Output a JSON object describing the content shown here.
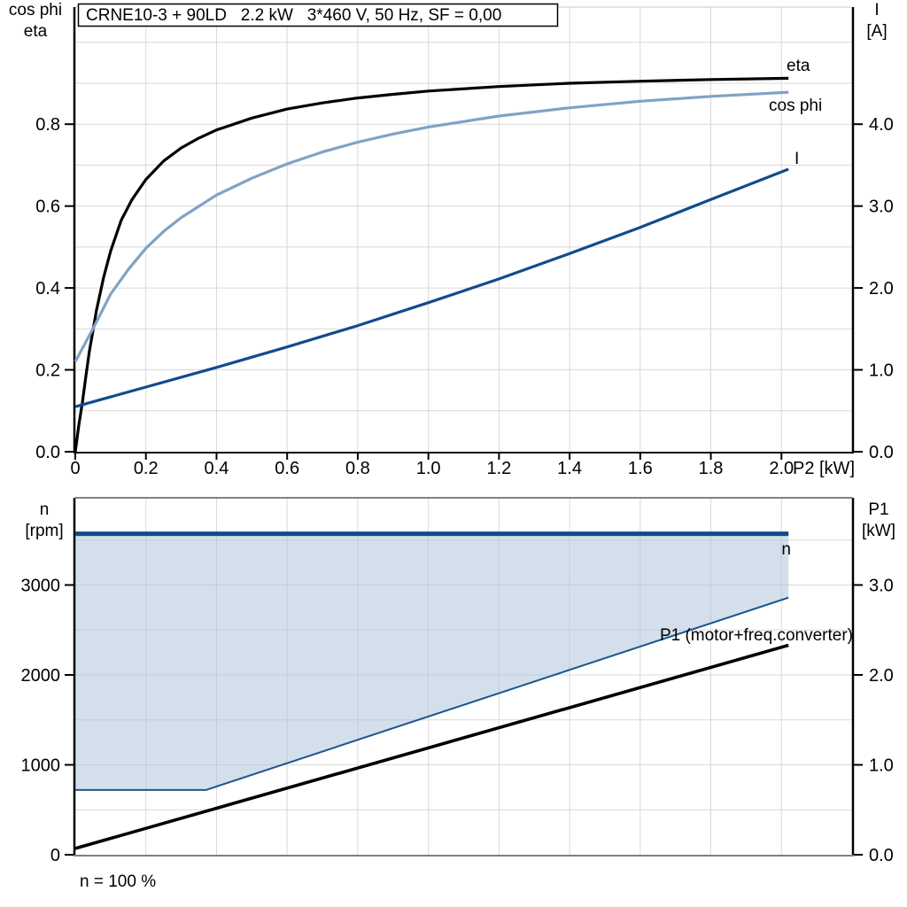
{
  "window": {
    "title": "CRNE10-3 + 90LD   2.2 kW   3*460 V, 50 Hz, SF = 0,00"
  },
  "colors": {
    "navy": "#104c8c",
    "light_blue": "#7fa3c6",
    "area_fill": "#aec4d9",
    "grid": "#d9d9d9",
    "axis": "#000000",
    "bottom_axis_gray": "#808080",
    "top_border_gray": "#c9c9c9",
    "background": "#ffffff"
  },
  "chart_data": [
    {
      "type": "line",
      "title": "CRNE10-3 + 90LD   2.2 kW   3*460 V, 50 Hz, SF = 0,00",
      "x_axis": {
        "label": "P2 [kW]",
        "min": 0,
        "max": 2.2,
        "grid_step": 0.2,
        "ticks": [
          0,
          0.2,
          0.4,
          0.6,
          0.8,
          1.0,
          1.2,
          1.4,
          1.6,
          1.8,
          2.0
        ],
        "tick_labels": [
          "0",
          "0.2",
          "0.4",
          "0.6",
          "0.8",
          "1.0",
          "1.2",
          "1.4",
          "1.6",
          "1.8",
          "2.0"
        ]
      },
      "y_left_axis": {
        "label_lines": [
          "cos phi",
          "eta"
        ],
        "min": 0,
        "max": 1.086,
        "grid_step": 0.1,
        "ticks": [
          0,
          0.2,
          0.4,
          0.6,
          0.8
        ],
        "tick_labels": [
          "0.0",
          "0.2",
          "0.4",
          "0.6",
          "0.8"
        ]
      },
      "y_right_axis": {
        "label_lines": [
          "I",
          "[A]"
        ],
        "min": 0,
        "max": 5.43,
        "ticks": [
          0,
          1,
          2,
          3,
          4
        ],
        "tick_labels": [
          "0.0",
          "1.0",
          "2.0",
          "3.0",
          "4.0"
        ]
      },
      "series": [
        {
          "name": "eta",
          "label": "eta",
          "axis": "left",
          "color": "#000000",
          "width": 3.2,
          "points": [
            [
              0,
              0
            ],
            [
              0.01,
              0.065
            ],
            [
              0.02,
              0.12
            ],
            [
              0.03,
              0.185
            ],
            [
              0.04,
              0.245
            ],
            [
              0.06,
              0.345
            ],
            [
              0.08,
              0.425
            ],
            [
              0.1,
              0.49
            ],
            [
              0.13,
              0.565
            ],
            [
              0.16,
              0.615
            ],
            [
              0.2,
              0.665
            ],
            [
              0.25,
              0.71
            ],
            [
              0.3,
              0.742
            ],
            [
              0.35,
              0.766
            ],
            [
              0.4,
              0.786
            ],
            [
              0.5,
              0.815
            ],
            [
              0.6,
              0.837
            ],
            [
              0.7,
              0.852
            ],
            [
              0.8,
              0.864
            ],
            [
              0.9,
              0.873
            ],
            [
              1.0,
              0.881
            ],
            [
              1.2,
              0.892
            ],
            [
              1.4,
              0.9
            ],
            [
              1.6,
              0.905
            ],
            [
              1.8,
              0.909
            ],
            [
              2.02,
              0.912
            ]
          ]
        },
        {
          "name": "cos phi",
          "label": "cos phi",
          "axis": "left",
          "color": "#7fa3c6",
          "width": 3.2,
          "points": [
            [
              0,
              0.22
            ],
            [
              0.05,
              0.3
            ],
            [
              0.1,
              0.385
            ],
            [
              0.15,
              0.445
            ],
            [
              0.2,
              0.497
            ],
            [
              0.25,
              0.538
            ],
            [
              0.3,
              0.572
            ],
            [
              0.4,
              0.627
            ],
            [
              0.5,
              0.668
            ],
            [
              0.6,
              0.703
            ],
            [
              0.7,
              0.732
            ],
            [
              0.8,
              0.756
            ],
            [
              0.9,
              0.776
            ],
            [
              1.0,
              0.793
            ],
            [
              1.2,
              0.82
            ],
            [
              1.4,
              0.84
            ],
            [
              1.6,
              0.856
            ],
            [
              1.8,
              0.868
            ],
            [
              2.02,
              0.878
            ]
          ]
        },
        {
          "name": "I",
          "label": "I",
          "axis": "right",
          "color": "#104c8c",
          "width": 3.2,
          "points": [
            [
              0,
              0.55
            ],
            [
              0.2,
              0.79
            ],
            [
              0.4,
              1.03
            ],
            [
              0.6,
              1.28
            ],
            [
              0.8,
              1.54
            ],
            [
              1.0,
              1.82
            ],
            [
              1.2,
              2.11
            ],
            [
              1.4,
              2.42
            ],
            [
              1.6,
              2.74
            ],
            [
              1.8,
              3.08
            ],
            [
              2.02,
              3.45
            ]
          ]
        }
      ]
    },
    {
      "type": "line-area",
      "x_axis": {
        "label": "",
        "min": 0,
        "max": 2.2,
        "grid_step": 0.2,
        "ticks": [],
        "tick_labels": []
      },
      "y_left_axis": {
        "label_lines": [
          "n",
          "[rpm]"
        ],
        "min": 0,
        "max": 3970,
        "grid_step": 500,
        "ticks": [
          0,
          1000,
          2000,
          3000
        ],
        "tick_labels": [
          "0",
          "1000",
          "2000",
          "3000"
        ]
      },
      "y_right_axis": {
        "label_lines": [
          "P1",
          "[kW]"
        ],
        "min": 0,
        "max": 3.97,
        "ticks": [
          0,
          1,
          2,
          3
        ],
        "tick_labels": [
          "0.0",
          "1.0",
          "2.0",
          "3.0"
        ]
      },
      "area": {
        "name": "speed-range",
        "fill": "#aec4d9",
        "opacity": 0.55,
        "lower": [
          [
            0,
            720
          ],
          [
            0.37,
            720
          ],
          [
            2.02,
            2860
          ]
        ],
        "upper": [
          [
            0,
            3570
          ],
          [
            2.02,
            3570
          ]
        ]
      },
      "series": [
        {
          "name": "n-max",
          "label": "n",
          "axis": "left",
          "color": "#104c8c",
          "width": 5,
          "points": [
            [
              0,
              3570
            ],
            [
              2.02,
              3570
            ]
          ]
        },
        {
          "name": "n-min",
          "label": "",
          "axis": "left",
          "color": "#1c568f",
          "width": 2,
          "points": [
            [
              0,
              720
            ],
            [
              0.37,
              720
            ],
            [
              2.02,
              2860
            ]
          ]
        },
        {
          "name": "P1",
          "label": "P1 (motor+freq.converter)",
          "axis": "right",
          "color": "#000000",
          "width": 3.6,
          "points": [
            [
              0,
              0.07
            ],
            [
              2.02,
              2.33
            ]
          ]
        }
      ],
      "caption": "n = 100 %"
    }
  ]
}
